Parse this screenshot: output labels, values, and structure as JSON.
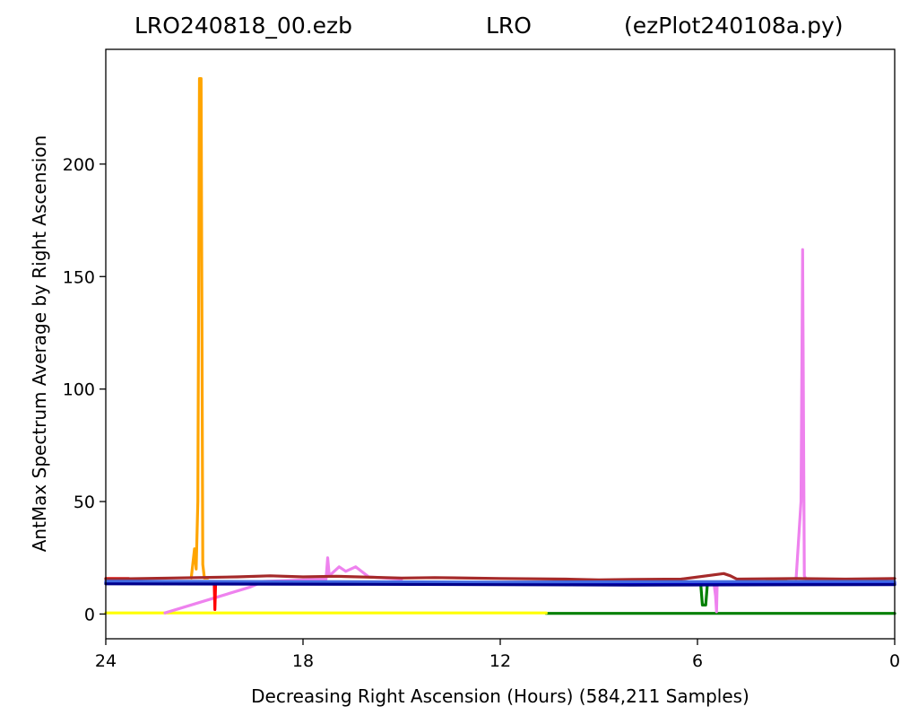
{
  "chart_data": {
    "type": "line",
    "title_parts": [
      "LRO240818_00.ezb",
      "LRO",
      "(ezPlot240108a.py)"
    ],
    "xlabel": "Decreasing Right Ascension (Hours) (584,211 Samples)",
    "ylabel": "AntMax Spectrum Average by Right Ascension",
    "xlim": [
      24,
      0
    ],
    "ylim": [
      -11,
      251
    ],
    "xticks": [
      24,
      18,
      12,
      6,
      0
    ],
    "yticks": [
      0,
      50,
      100,
      150,
      200
    ],
    "grid": false,
    "series": [
      {
        "color": "#008000",
        "x": [
          10.6,
          0
        ],
        "y": [
          0.3,
          0.3
        ]
      },
      {
        "color": "#ffff00",
        "x": [
          24,
          10.6
        ],
        "y": [
          0.5,
          0.5
        ]
      },
      {
        "color": "#ee82ee",
        "x": [
          22.2,
          19.6,
          19.2,
          17.3,
          17.25,
          17.2,
          16.9,
          16.7,
          16.4,
          16.0,
          15.0
        ],
        "y": [
          0.5,
          12.0,
          14.5,
          15.5,
          25.0,
          17.0,
          21.0,
          19.0,
          21.0,
          16.5,
          15.5
        ]
      },
      {
        "color": "#ee82ee",
        "x": [
          5.5,
          5.45,
          5.42,
          5.4
        ],
        "y": [
          14.0,
          8.0,
          1.0,
          14.0
        ]
      },
      {
        "color": "#ee82ee",
        "x": [
          3.0,
          2.85,
          2.8,
          2.75,
          2.7,
          2.5
        ],
        "y": [
          15.5,
          50.0,
          162.0,
          17.0,
          15.5,
          15.5
        ]
      },
      {
        "color": "#ffa500",
        "x": [
          21.4,
          21.3,
          21.25,
          21.2,
          21.15,
          21.1,
          21.05,
          21.0,
          20.9
        ],
        "y": [
          16.0,
          29.0,
          20.0,
          50.0,
          238.0,
          238.0,
          22.0,
          16.0,
          16.0
        ]
      },
      {
        "color": "#ffa500",
        "x": [
          3.9,
          3.3
        ],
        "y": [
          15.5,
          15.5
        ]
      },
      {
        "color": "#ff0000",
        "x": [
          24,
          23.3
        ],
        "y": [
          15.8,
          15.8
        ]
      },
      {
        "color": "#ff0000",
        "x": [
          20.7,
          20.68,
          20.66
        ],
        "y": [
          13.5,
          2.0,
          13.5
        ]
      },
      {
        "color": "#008000",
        "x": [
          24,
          22.3
        ],
        "y": [
          13.8,
          13.8
        ]
      },
      {
        "color": "#008000",
        "x": [
          5.9,
          5.85,
          5.75,
          5.7
        ],
        "y": [
          13.0,
          4.0,
          4.0,
          13.0
        ]
      },
      {
        "color": "#a52a2a",
        "x": [
          24,
          22,
          20,
          19,
          18,
          17,
          15,
          14,
          12,
          10,
          9,
          8,
          6.5,
          5.2,
          5.0,
          4.8,
          3,
          1.5,
          0
        ],
        "y": [
          15.5,
          16.0,
          16.5,
          17.0,
          16.5,
          16.8,
          16.0,
          16.2,
          15.8,
          15.5,
          15.2,
          15.4,
          15.5,
          18.0,
          17.0,
          15.5,
          15.8,
          15.5,
          15.8
        ]
      },
      {
        "color": "#0000ff",
        "x": [
          24,
          20,
          16,
          12,
          8,
          4,
          0
        ],
        "y": [
          14.2,
          14.0,
          13.8,
          13.5,
          13.2,
          13.5,
          13.8
        ]
      },
      {
        "color": "#4169e1",
        "x": [
          24,
          18,
          12,
          6,
          0
        ],
        "y": [
          14.6,
          14.4,
          14.2,
          14.4,
          14.5
        ]
      },
      {
        "color": "#00008b",
        "x": [
          24,
          16,
          8,
          0
        ],
        "y": [
          13.4,
          13.2,
          12.9,
          13.1
        ]
      }
    ]
  }
}
